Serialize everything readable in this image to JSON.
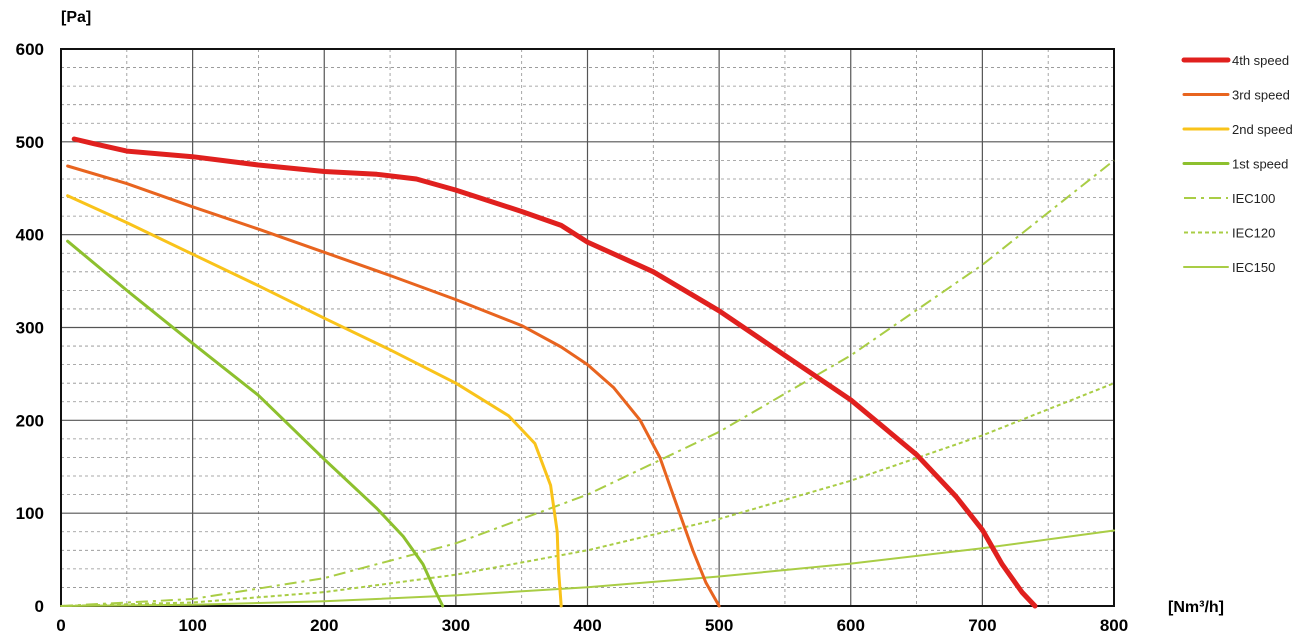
{
  "chart_data": {
    "type": "line",
    "ylabel": "[Pa]",
    "xlabel": "[Nm³/h]",
    "xlim": [
      0,
      800
    ],
    "ylim": [
      0,
      600
    ],
    "x_ticks": [
      0,
      100,
      200,
      300,
      400,
      500,
      600,
      700,
      800
    ],
    "y_ticks": [
      0,
      100,
      200,
      300,
      400,
      500,
      600
    ],
    "x_tick_labels": [
      "0",
      "100",
      "200",
      "300",
      "400",
      "500",
      "600",
      "700",
      "800"
    ],
    "y_tick_labels": [
      "0",
      "100",
      "200",
      "300",
      "400",
      "500",
      "600"
    ],
    "grid": {
      "major": true,
      "minor": true,
      "x_minor_step": 50,
      "y_minor_step": 20
    },
    "legend_position": "right",
    "series": [
      {
        "name": "4th speed",
        "color": "#e0201e",
        "style": "solid-thick",
        "points": [
          [
            10,
            503
          ],
          [
            25,
            498
          ],
          [
            50,
            490
          ],
          [
            100,
            484
          ],
          [
            150,
            475
          ],
          [
            200,
            468
          ],
          [
            240,
            465
          ],
          [
            270,
            460
          ],
          [
            300,
            448
          ],
          [
            350,
            425
          ],
          [
            380,
            410
          ],
          [
            400,
            392
          ],
          [
            450,
            360
          ],
          [
            500,
            318
          ],
          [
            550,
            270
          ],
          [
            600,
            222
          ],
          [
            650,
            163
          ],
          [
            680,
            118
          ],
          [
            700,
            82
          ],
          [
            715,
            45
          ],
          [
            730,
            15
          ],
          [
            740,
            0
          ]
        ]
      },
      {
        "name": "3rd speed",
        "color": "#e8641f",
        "style": "solid",
        "points": [
          [
            5,
            474
          ],
          [
            50,
            455
          ],
          [
            100,
            430
          ],
          [
            150,
            406
          ],
          [
            200,
            381
          ],
          [
            250,
            356
          ],
          [
            300,
            330
          ],
          [
            350,
            302
          ],
          [
            380,
            279
          ],
          [
            400,
            260
          ],
          [
            420,
            235
          ],
          [
            440,
            200
          ],
          [
            455,
            160
          ],
          [
            470,
            100
          ],
          [
            480,
            60
          ],
          [
            490,
            25
          ],
          [
            500,
            0
          ]
        ]
      },
      {
        "name": "2nd speed",
        "color": "#f9c31a",
        "style": "solid",
        "points": [
          [
            5,
            442
          ],
          [
            50,
            413
          ],
          [
            100,
            379
          ],
          [
            150,
            345
          ],
          [
            200,
            310
          ],
          [
            250,
            276
          ],
          [
            300,
            240
          ],
          [
            340,
            205
          ],
          [
            360,
            175
          ],
          [
            372,
            130
          ],
          [
            377,
            80
          ],
          [
            378,
            40
          ],
          [
            380,
            0
          ]
        ]
      },
      {
        "name": "1st speed",
        "color": "#8dc02e",
        "style": "solid",
        "points": [
          [
            5,
            393
          ],
          [
            50,
            340
          ],
          [
            100,
            283
          ],
          [
            150,
            227
          ],
          [
            200,
            158
          ],
          [
            240,
            105
          ],
          [
            260,
            75
          ],
          [
            275,
            45
          ],
          [
            283,
            20
          ],
          [
            290,
            0
          ]
        ]
      },
      {
        "name": "IEC100",
        "color": "#a9cd45",
        "style": "dash-dot",
        "points": [
          [
            0,
            0
          ],
          [
            100,
            7.5
          ],
          [
            200,
            30
          ],
          [
            300,
            67.5
          ],
          [
            400,
            120
          ],
          [
            500,
            187.5
          ],
          [
            600,
            270
          ],
          [
            700,
            367.5
          ],
          [
            800,
            480
          ]
        ]
      },
      {
        "name": "IEC120",
        "color": "#a9cd45",
        "style": "dashed",
        "points": [
          [
            0,
            0
          ],
          [
            100,
            3.75
          ],
          [
            200,
            15
          ],
          [
            300,
            33.75
          ],
          [
            400,
            60
          ],
          [
            500,
            93.75
          ],
          [
            600,
            135
          ],
          [
            700,
            183.75
          ],
          [
            800,
            240
          ]
        ]
      },
      {
        "name": "IEC150",
        "color": "#a9cd45",
        "style": "solid-thin",
        "points": [
          [
            0,
            0
          ],
          [
            100,
            1.3
          ],
          [
            200,
            5.1
          ],
          [
            300,
            11.4
          ],
          [
            400,
            20.3
          ],
          [
            500,
            31.8
          ],
          [
            600,
            45.7
          ],
          [
            700,
            62.2
          ],
          [
            800,
            81.3
          ]
        ]
      }
    ]
  }
}
